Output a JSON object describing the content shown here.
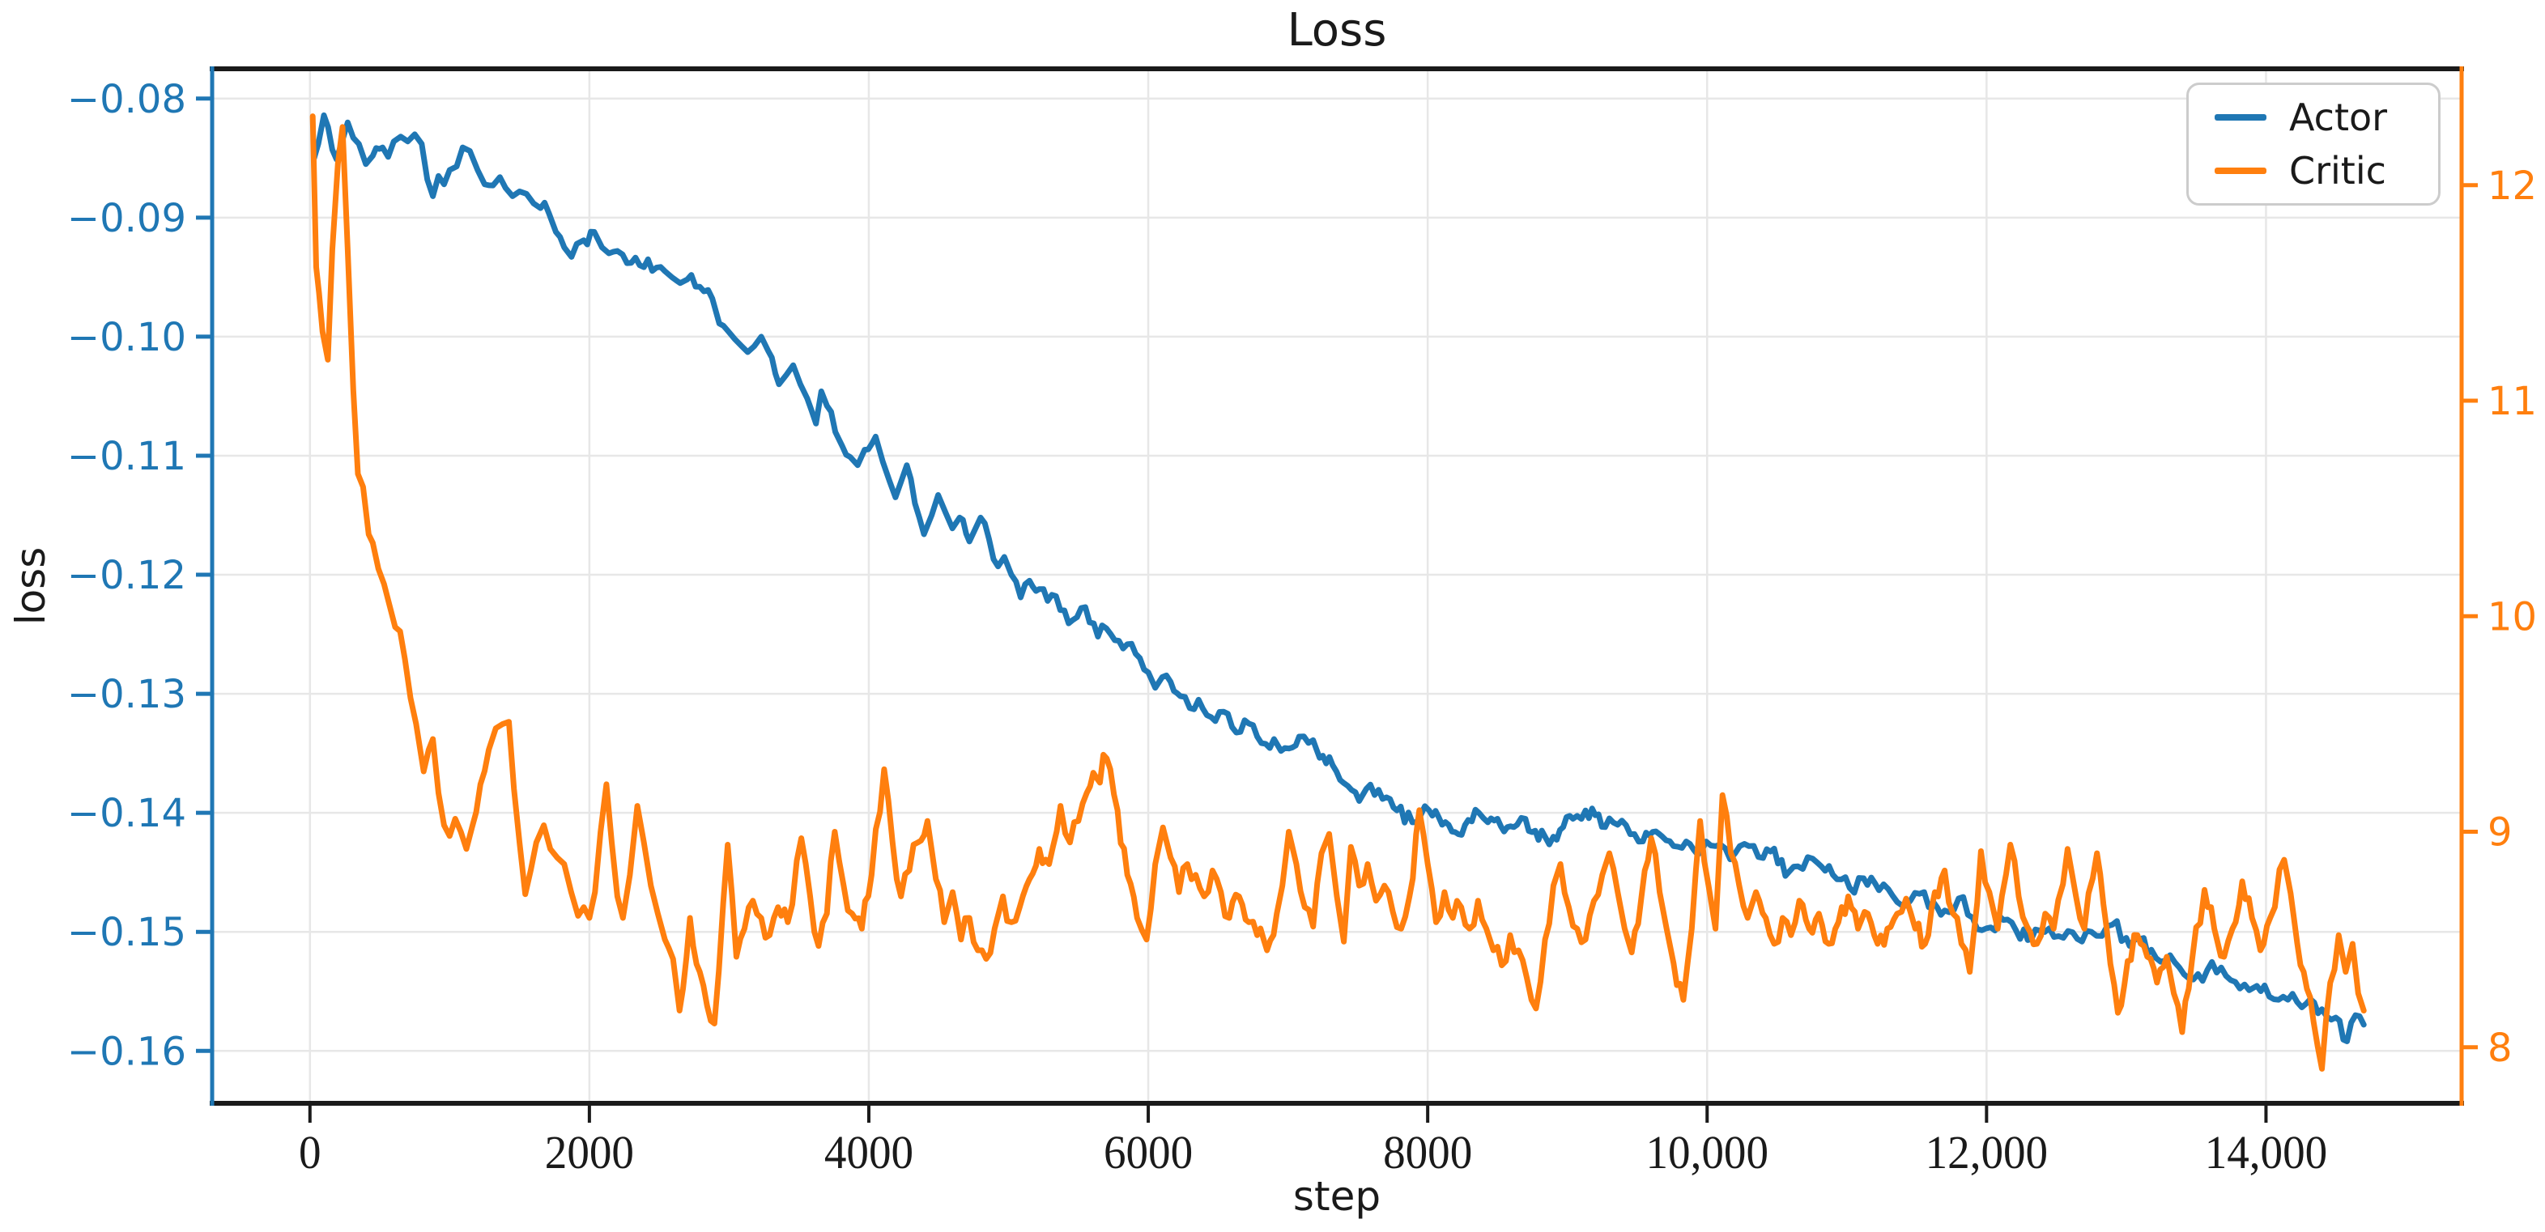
{
  "chart_data": {
    "type": "line",
    "title": "Loss",
    "xlabel": "step",
    "ylabel_left": "loss",
    "grid": true,
    "legend_position": "upper right",
    "colors": {
      "actor": "#1f77b4",
      "critic": "#ff7f0e",
      "spine_dark": "#1a1a1a",
      "gridline": "#e7e7e7",
      "text": "#1a1a1a",
      "legend_border": "#cccccc"
    },
    "x_axis": {
      "min": -700,
      "max": 15400,
      "ticks": [
        {
          "v": 0,
          "label": "0"
        },
        {
          "v": 2000,
          "label": "2000"
        },
        {
          "v": 4000,
          "label": "4000"
        },
        {
          "v": 6000,
          "label": "6000"
        },
        {
          "v": 8000,
          "label": "8000"
        },
        {
          "v": 10000,
          "label": "10,000"
        },
        {
          "v": 12000,
          "label": "12,000"
        },
        {
          "v": 14000,
          "label": "14,000"
        }
      ]
    },
    "y_axis_left": {
      "min": -0.1644,
      "max": -0.0775,
      "color": "#1f77b4",
      "ticks": [
        {
          "v": -0.08,
          "label": "−0.08"
        },
        {
          "v": -0.09,
          "label": "−0.09"
        },
        {
          "v": -0.1,
          "label": "−0.10"
        },
        {
          "v": -0.11,
          "label": "−0.11"
        },
        {
          "v": -0.12,
          "label": "−0.12"
        },
        {
          "v": -0.13,
          "label": "−0.13"
        },
        {
          "v": -0.14,
          "label": "−0.14"
        },
        {
          "v": -0.15,
          "label": "−0.15"
        },
        {
          "v": -0.16,
          "label": "−0.16"
        }
      ]
    },
    "y_axis_right": {
      "min": 7.74,
      "max": 12.54,
      "color": "#ff7f0e",
      "ticks": [
        {
          "v": 12,
          "label": "12"
        },
        {
          "v": 11,
          "label": "11"
        },
        {
          "v": 10,
          "label": "10"
        },
        {
          "v": 9,
          "label": "9"
        },
        {
          "v": 8,
          "label": "8"
        }
      ]
    },
    "series": [
      {
        "name": "Actor",
        "color": "#1f77b4",
        "axis": "left",
        "noise_amp": 0.0007,
        "x": [
          30,
          60,
          100,
          130,
          160,
          190,
          230,
          270,
          310,
          350,
          400,
          450,
          520,
          560,
          600,
          650,
          700,
          750,
          800,
          840,
          880,
          920,
          960,
          1000,
          1050,
          1093,
          1145,
          1200,
          1250,
          1310,
          1360,
          1400,
          1450,
          1500,
          1550,
          1600,
          1650,
          1709,
          1760,
          1820,
          1872,
          1910,
          1960,
          2035,
          2090,
          2140,
          2200,
          2238,
          2300,
          2360,
          2420,
          2480,
          2540,
          2590,
          2650,
          2700,
          2760,
          2820,
          2880,
          2930,
          2990,
          3040,
          3090,
          3133,
          3180,
          3230,
          3280,
          3357,
          3410,
          3459,
          3510,
          3560,
          3622,
          3660,
          3700,
          3760,
          3810,
          3866,
          3920,
          3970,
          4049,
          4100,
          4150,
          4191,
          4230,
          4272,
          4330,
          4395,
          4450,
          4496,
          4550,
          4598,
          4650,
          4720,
          4760,
          4800,
          4860,
          4925,
          4970,
          5020,
          5087,
          5150,
          5220,
          5280,
          5340,
          5400,
          5460,
          5520,
          5580,
          5640,
          5700,
          5760,
          5820,
          5880,
          5940,
          6000,
          6050,
          6100,
          6160,
          6230,
          6297,
          6360,
          6420,
          6480,
          6540,
          6600,
          6660,
          6720,
          6780,
          6840,
          6900,
          6950,
          7006,
          7080,
          7180,
          7250,
          7320,
          7400,
          7510,
          7560,
          7620,
          7705,
          7780,
          7890,
          7950,
          8010,
          8080,
          8150,
          8220,
          8290,
          8367,
          8430,
          8500,
          8570,
          8640,
          8700,
          8770,
          8840,
          8900,
          8970,
          9040,
          9130,
          9200,
          9270,
          9360,
          9450,
          9540,
          9610,
          9680,
          9760,
          9850,
          9960,
          10060,
          10200,
          10300,
          10400,
          10480,
          10560,
          10650,
          10790,
          10900,
          11020,
          11120,
          11230,
          11330,
          11424,
          11520,
          11620,
          11700,
          11800,
          11900,
          12000,
          12120,
          12240,
          12350,
          12450,
          12550,
          12650,
          12750,
          12900,
          13000,
          13070,
          13180,
          13280,
          13380,
          13480,
          13580,
          13680,
          13780,
          13880,
          13990,
          14090,
          14190,
          14290,
          14400,
          14500,
          14580,
          14640,
          14700
        ],
        "y": [
          -0.085,
          -0.0838,
          -0.0814,
          -0.0824,
          -0.0843,
          -0.0851,
          -0.0836,
          -0.082,
          -0.0833,
          -0.0838,
          -0.0855,
          -0.0848,
          -0.0841,
          -0.0849,
          -0.0836,
          -0.0832,
          -0.0836,
          -0.083,
          -0.0838,
          -0.0868,
          -0.0882,
          -0.0865,
          -0.0872,
          -0.086,
          -0.0857,
          -0.0841,
          -0.0844,
          -0.086,
          -0.0872,
          -0.0873,
          -0.0866,
          -0.0875,
          -0.0882,
          -0.0878,
          -0.088,
          -0.0888,
          -0.0892,
          -0.0896,
          -0.0912,
          -0.0925,
          -0.0933,
          -0.0922,
          -0.0919,
          -0.0912,
          -0.0925,
          -0.093,
          -0.0928,
          -0.0931,
          -0.0938,
          -0.094,
          -0.0935,
          -0.0942,
          -0.0945,
          -0.095,
          -0.0955,
          -0.0952,
          -0.0958,
          -0.0962,
          -0.0968,
          -0.0989,
          -0.0995,
          -0.1002,
          -0.1008,
          -0.1013,
          -0.1008,
          -0.1,
          -0.1012,
          -0.104,
          -0.1032,
          -0.1024,
          -0.104,
          -0.1052,
          -0.1073,
          -0.1046,
          -0.1058,
          -0.108,
          -0.1092,
          -0.1101,
          -0.1108,
          -0.1095,
          -0.1084,
          -0.1105,
          -0.1122,
          -0.1135,
          -0.1122,
          -0.1108,
          -0.114,
          -0.1166,
          -0.115,
          -0.1133,
          -0.1148,
          -0.1161,
          -0.1152,
          -0.1172,
          -0.1162,
          -0.1152,
          -0.117,
          -0.1193,
          -0.1185,
          -0.12,
          -0.1219,
          -0.1205,
          -0.1212,
          -0.1222,
          -0.1218,
          -0.123,
          -0.1238,
          -0.1228,
          -0.124,
          -0.1252,
          -0.1245,
          -0.1255,
          -0.1262,
          -0.1258,
          -0.127,
          -0.1282,
          -0.1295,
          -0.1286,
          -0.129,
          -0.1302,
          -0.1312,
          -0.1305,
          -0.1318,
          -0.1323,
          -0.1315,
          -0.1328,
          -0.1332,
          -0.1325,
          -0.1336,
          -0.1342,
          -0.1338,
          -0.1348,
          -0.1346,
          -0.1336,
          -0.1339,
          -0.1352,
          -0.136,
          -0.1375,
          -0.139,
          -0.138,
          -0.1385,
          -0.1387,
          -0.1398,
          -0.1408,
          -0.1402,
          -0.1398,
          -0.1404,
          -0.141,
          -0.1418,
          -0.1406,
          -0.14,
          -0.1408,
          -0.1405,
          -0.1412,
          -0.141,
          -0.1405,
          -0.1415,
          -0.142,
          -0.142,
          -0.1412,
          -0.1405,
          -0.1398,
          -0.1402,
          -0.1412,
          -0.141,
          -0.1418,
          -0.1424,
          -0.1416,
          -0.142,
          -0.1428,
          -0.1424,
          -0.1432,
          -0.1428,
          -0.1434,
          -0.1428,
          -0.1438,
          -0.143,
          -0.1453,
          -0.1445,
          -0.1442,
          -0.1452,
          -0.1463,
          -0.1455,
          -0.1465,
          -0.147,
          -0.1478,
          -0.1468,
          -0.1475,
          -0.1482,
          -0.1472,
          -0.1488,
          -0.1497,
          -0.149,
          -0.1506,
          -0.1498,
          -0.1497,
          -0.1505,
          -0.1506,
          -0.15,
          -0.1494,
          -0.1505,
          -0.1506,
          -0.1515,
          -0.1524,
          -0.153,
          -0.154,
          -0.1532,
          -0.153,
          -0.1542,
          -0.1549,
          -0.1545,
          -0.1557,
          -0.1552,
          -0.156,
          -0.1565,
          -0.1572,
          -0.1592,
          -0.157,
          -0.1578
        ]
      },
      {
        "name": "Critic",
        "color": "#ff7f0e",
        "axis": "right",
        "noise_amp": 0.055,
        "x": [
          20,
          45,
          65,
          90,
          128,
          160,
          200,
          233,
          270,
          310,
          343,
          380,
          420,
          450,
          490,
          530,
          570,
          610,
          645,
          680,
          720,
          760,
          814,
          850,
          880,
          920,
          960,
          1000,
          1040,
          1080,
          1120,
          1160,
          1220,
          1280,
          1330,
          1380,
          1424,
          1460,
          1500,
          1541,
          1580,
          1620,
          1674,
          1720,
          1770,
          1820,
          1870,
          1919,
          1960,
          2000,
          2040,
          2080,
          2122,
          2160,
          2200,
          2240,
          2290,
          2343,
          2390,
          2440,
          2490,
          2540,
          2599,
          2645,
          2720,
          2790,
          2895,
          2990,
          3052,
          3110,
          3170,
          3230,
          3290,
          3350,
          3420,
          3517,
          3580,
          3640,
          3700,
          3756,
          3820,
          3880,
          3950,
          4020,
          4110,
          4170,
          4230,
          4290,
          4350,
          4420,
          4480,
          4540,
          4600,
          4660,
          4720,
          4780,
          4840,
          4900,
          4960,
          5020,
          5080,
          5150,
          5220,
          5290,
          5372,
          5440,
          5500,
          5560,
          5630,
          5703,
          5780,
          5850,
          5920,
          5988,
          6050,
          6105,
          6160,
          6220,
          6280,
          6340,
          6400,
          6460,
          6520,
          6580,
          6650,
          6720,
          6780,
          6850,
          6920,
          6960,
          7006,
          7060,
          7120,
          7180,
          7240,
          7295,
          7350,
          7400,
          7450,
          7510,
          7570,
          7630,
          7690,
          7750,
          7810,
          7870,
          7940,
          8000,
          8060,
          8120,
          8180,
          8240,
          8300,
          8360,
          8420,
          8470,
          8530,
          8590,
          8650,
          8710,
          8775,
          8840,
          8900,
          8950,
          9010,
          9070,
          9130,
          9190,
          9250,
          9300,
          9360,
          9410,
          9460,
          9530,
          9600,
          9660,
          9710,
          9760,
          9830,
          9890,
          9950,
          10010,
          10060,
          10110,
          10170,
          10230,
          10290,
          10350,
          10420,
          10480,
          10540,
          10600,
          10660,
          10730,
          10800,
          10870,
          10940,
          11010,
          11080,
          11150,
          11220,
          11290,
          11360,
          11424,
          11490,
          11560,
          11630,
          11700,
          11760,
          11820,
          11880,
          11960,
          12020,
          12080,
          12170,
          12230,
          12290,
          12360,
          12420,
          12480,
          12580,
          12640,
          12700,
          12790,
          12860,
          12940,
          13010,
          13080,
          13150,
          13220,
          13290,
          13340,
          13400,
          13470,
          13560,
          13630,
          13700,
          13760,
          13830,
          13900,
          13960,
          14030,
          14130,
          14200,
          14270,
          14340,
          14400,
          14460,
          14520,
          14570,
          14620,
          14660,
          14700
        ],
        "y": [
          12.32,
          11.62,
          11.5,
          11.32,
          11.19,
          11.7,
          12.1,
          12.27,
          11.7,
          11.05,
          10.66,
          10.6,
          10.38,
          10.34,
          10.22,
          10.15,
          10.05,
          9.95,
          9.93,
          9.8,
          9.62,
          9.5,
          9.28,
          9.38,
          9.43,
          9.18,
          9.03,
          8.98,
          9.06,
          9.0,
          8.92,
          9.02,
          9.22,
          9.38,
          9.48,
          9.5,
          9.51,
          9.2,
          8.95,
          8.71,
          8.82,
          8.95,
          9.03,
          8.92,
          8.88,
          8.85,
          8.72,
          8.61,
          8.65,
          8.6,
          8.72,
          9.0,
          9.22,
          8.95,
          8.7,
          8.6,
          8.8,
          9.12,
          8.95,
          8.75,
          8.62,
          8.5,
          8.41,
          8.17,
          8.6,
          8.35,
          8.11,
          8.94,
          8.42,
          8.55,
          8.68,
          8.6,
          8.52,
          8.65,
          8.58,
          8.97,
          8.7,
          8.47,
          8.62,
          9.0,
          8.75,
          8.62,
          8.55,
          8.8,
          9.29,
          8.95,
          8.7,
          8.82,
          8.95,
          9.05,
          8.78,
          8.58,
          8.72,
          8.5,
          8.6,
          8.45,
          8.41,
          8.55,
          8.7,
          8.58,
          8.65,
          8.78,
          8.92,
          8.85,
          9.12,
          8.95,
          9.05,
          9.18,
          9.25,
          9.34,
          9.1,
          8.8,
          8.6,
          8.5,
          8.85,
          9.02,
          8.88,
          8.72,
          8.85,
          8.8,
          8.7,
          8.82,
          8.72,
          8.6,
          8.7,
          8.58,
          8.52,
          8.45,
          8.62,
          8.75,
          9.0,
          8.85,
          8.65,
          8.56,
          8.9,
          8.99,
          8.7,
          8.49,
          8.93,
          8.75,
          8.85,
          8.68,
          8.75,
          8.63,
          8.55,
          8.7,
          9.1,
          8.85,
          8.58,
          8.72,
          8.6,
          8.65,
          8.55,
          8.68,
          8.55,
          8.45,
          8.38,
          8.52,
          8.45,
          8.32,
          8.18,
          8.5,
          8.75,
          8.85,
          8.65,
          8.55,
          8.5,
          8.68,
          8.8,
          8.9,
          8.72,
          8.55,
          8.44,
          8.7,
          8.97,
          8.72,
          8.55,
          8.39,
          8.22,
          8.55,
          9.05,
          8.75,
          8.55,
          9.17,
          8.9,
          8.75,
          8.6,
          8.72,
          8.6,
          8.48,
          8.6,
          8.52,
          8.68,
          8.55,
          8.62,
          8.48,
          8.58,
          8.7,
          8.55,
          8.62,
          8.48,
          8.55,
          8.62,
          8.69,
          8.55,
          8.48,
          8.72,
          8.82,
          8.62,
          8.48,
          8.35,
          8.91,
          8.72,
          8.55,
          8.94,
          8.7,
          8.56,
          8.48,
          8.62,
          8.55,
          8.92,
          8.7,
          8.55,
          8.9,
          8.55,
          8.16,
          8.4,
          8.52,
          8.42,
          8.3,
          8.42,
          8.25,
          8.07,
          8.4,
          8.73,
          8.55,
          8.42,
          8.55,
          8.77,
          8.6,
          8.45,
          8.6,
          8.87,
          8.6,
          8.35,
          8.12,
          7.9,
          8.3,
          8.52,
          8.35,
          8.48,
          8.25,
          8.17
        ]
      }
    ]
  }
}
